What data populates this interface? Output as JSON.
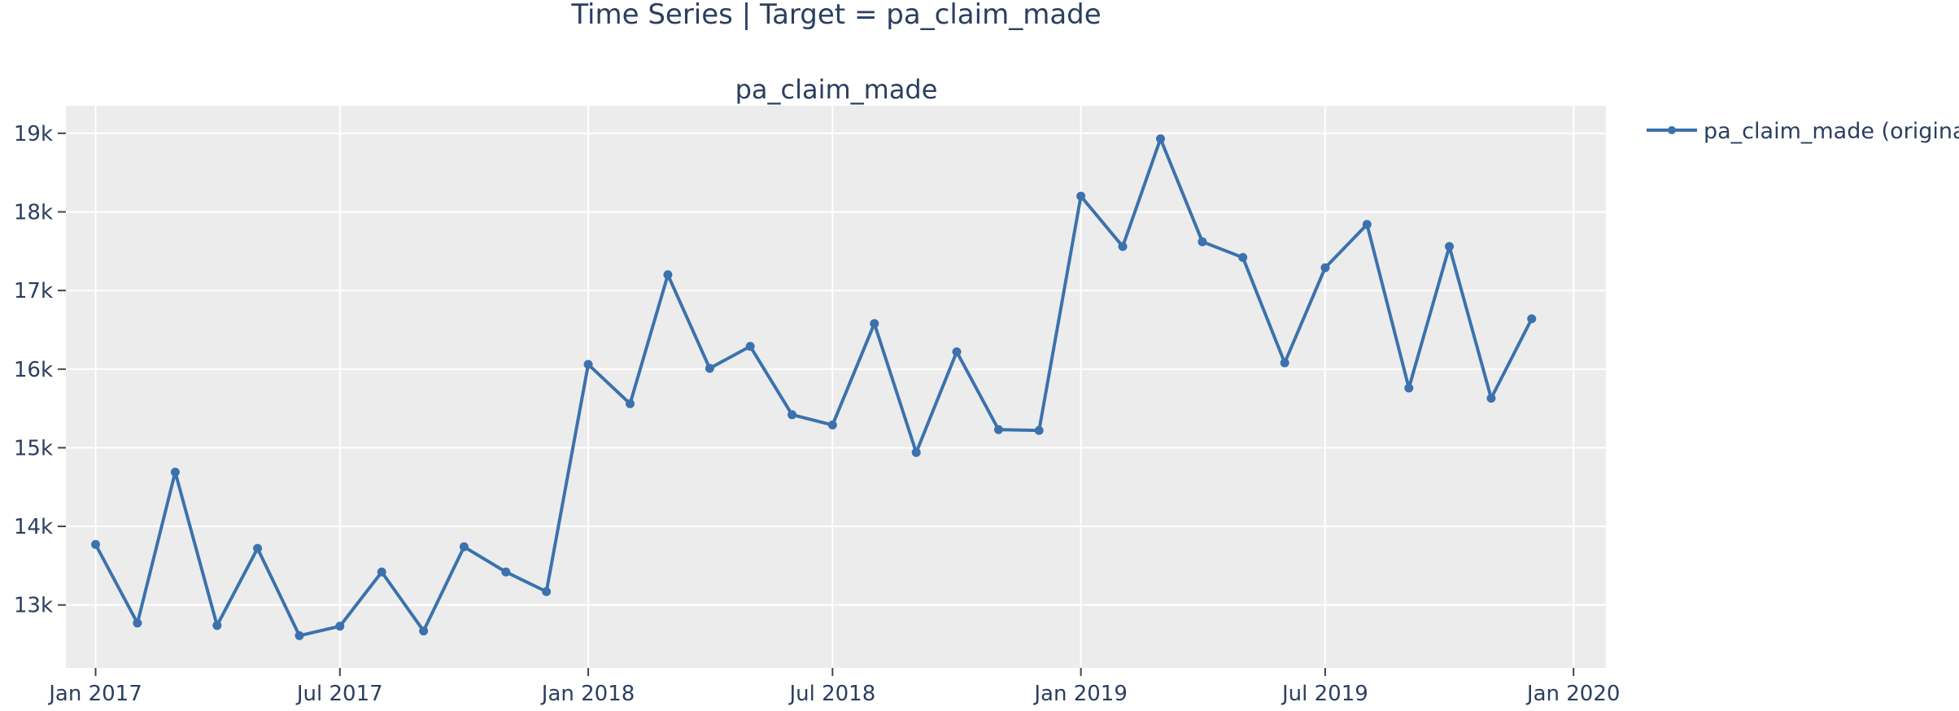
{
  "figure_title": "Time Series | Target = pa_claim_made",
  "chart_data": {
    "type": "line",
    "title": "pa_claim_made",
    "xlabel": "",
    "ylabel": "",
    "x_tick_labels": [
      "Jan 2017",
      "Jul 2017",
      "Jan 2018",
      "Jul 2018",
      "Jan 2019",
      "Jul 2019",
      "Jan 2020"
    ],
    "x_tick_dates": [
      "2017-01-01",
      "2017-07-01",
      "2018-01-01",
      "2018-07-01",
      "2019-01-01",
      "2019-07-01",
      "2020-01-01"
    ],
    "x_range": [
      "2016-12-10",
      "2020-01-25"
    ],
    "y_ticks": [
      13000,
      14000,
      15000,
      16000,
      17000,
      18000,
      19000
    ],
    "y_tick_labels": [
      "13k",
      "14k",
      "15k",
      "16k",
      "17k",
      "18k",
      "19k"
    ],
    "ylim": [
      12200,
      19350
    ],
    "grid": true,
    "legend_position": "top-right",
    "series": [
      {
        "name": "pa_claim_made (original)",
        "color": "#3b72ad",
        "x": [
          "2017-01-01",
          "2017-02-01",
          "2017-03-01",
          "2017-04-01",
          "2017-05-01",
          "2017-06-01",
          "2017-07-01",
          "2017-08-01",
          "2017-09-01",
          "2017-10-01",
          "2017-11-01",
          "2017-12-01",
          "2018-01-01",
          "2018-02-01",
          "2018-03-01",
          "2018-04-01",
          "2018-05-01",
          "2018-06-01",
          "2018-07-01",
          "2018-08-01",
          "2018-09-01",
          "2018-10-01",
          "2018-11-01",
          "2018-12-01",
          "2019-01-01",
          "2019-02-01",
          "2019-03-01",
          "2019-04-01",
          "2019-05-01",
          "2019-06-01",
          "2019-07-01",
          "2019-08-01",
          "2019-09-01",
          "2019-10-01",
          "2019-11-01",
          "2019-12-01"
        ],
        "values": [
          13770,
          12770,
          14690,
          12740,
          13720,
          12610,
          12730,
          13420,
          12670,
          13740,
          13420,
          13170,
          16060,
          15560,
          17200,
          16010,
          16290,
          15420,
          15290,
          16580,
          14940,
          16220,
          15230,
          15220,
          18200,
          17560,
          18930,
          17620,
          17420,
          16080,
          17290,
          17840,
          15760,
          17560,
          15630,
          16640
        ]
      }
    ]
  }
}
